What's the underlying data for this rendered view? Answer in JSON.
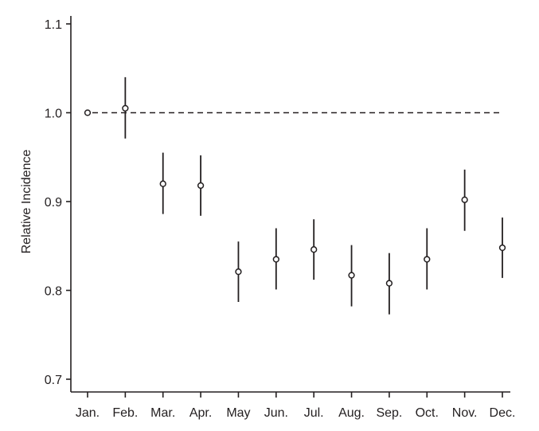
{
  "chart_data": {
    "type": "scatter",
    "title": "",
    "xlabel": "",
    "ylabel": "Relative Incidence",
    "categories": [
      "Jan.",
      "Feb.",
      "Mar.",
      "Apr.",
      "May",
      "Jun.",
      "Jul.",
      "Aug.",
      "Sep.",
      "Oct.",
      "Nov.",
      "Dec."
    ],
    "values": [
      1.0,
      1.005,
      0.92,
      0.918,
      0.821,
      0.835,
      0.846,
      0.817,
      0.808,
      0.835,
      0.902,
      0.848
    ],
    "ci_lower": [
      null,
      0.971,
      0.886,
      0.884,
      0.787,
      0.801,
      0.812,
      0.782,
      0.773,
      0.801,
      0.867,
      0.814
    ],
    "ci_upper": [
      null,
      1.04,
      0.955,
      0.952,
      0.855,
      0.87,
      0.88,
      0.851,
      0.842,
      0.87,
      0.936,
      0.882
    ],
    "reference_line": 1.0,
    "ylim": [
      0.7,
      1.1
    ],
    "yticks": [
      "0.7",
      "0.8",
      "0.9",
      "1.0",
      "1.1"
    ],
    "grid": false,
    "colors": {
      "ink": "#231f20",
      "background": "#ffffff"
    }
  }
}
